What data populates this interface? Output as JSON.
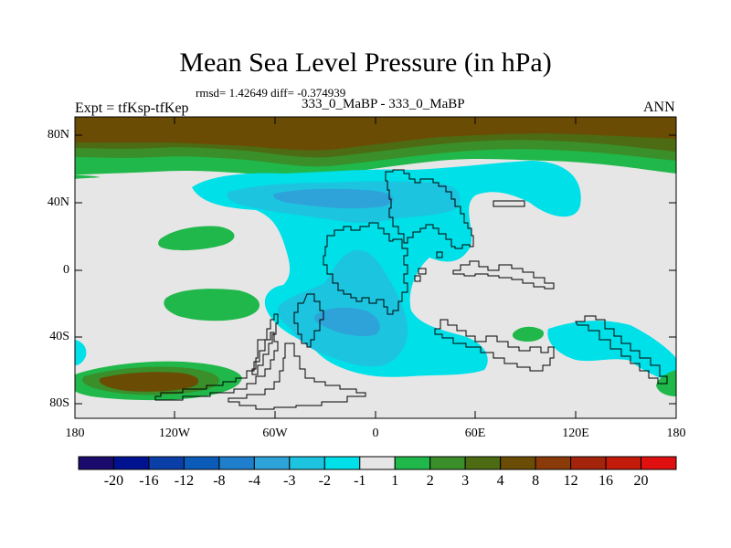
{
  "title": "Mean Sea Level Pressure (in hPa)",
  "stats": "rmsd= 1.42649 diff= -0.374939",
  "experiment": "Expt = tfKsp-tfKep",
  "cases": "333_0_MaBP - 333_0_MaBP",
  "season": "ANN",
  "y_axis": {
    "labels": [
      "80N",
      "40N",
      "0",
      "40S",
      "80S"
    ],
    "values": [
      80,
      40,
      0,
      -40,
      -80
    ]
  },
  "x_axis": {
    "labels": [
      "180",
      "120W",
      "60W",
      "0",
      "60E",
      "120E",
      "180"
    ],
    "values": [
      -180,
      -120,
      -60,
      0,
      60,
      120,
      180
    ]
  },
  "colorbar": {
    "levels": [
      "-20",
      "-16",
      "-12",
      "-8",
      "-4",
      "-3",
      "-2",
      "-1",
      "1",
      "2",
      "3",
      "4",
      "8",
      "12",
      "16",
      "20"
    ],
    "colors": [
      "#1a0a6b",
      "#00128f",
      "#0a3fa8",
      "#0a5cb8",
      "#1f7fcc",
      "#2ea3d9",
      "#1cc4e0",
      "#00e0e8",
      "#e6e6e6",
      "#20b84a",
      "#3a8f2a",
      "#4c6b12",
      "#6b4c05",
      "#8a3a08",
      "#a3240a",
      "#c41a0a",
      "#e01010"
    ]
  },
  "map_colors": {
    "background": "#e6e6e6",
    "neg1": "#00e0e8",
    "neg2": "#1cc4e0",
    "neg3": "#2ea3d9",
    "neg4": "#1f7fcc",
    "pos1": "#20b84a",
    "pos2": "#3a8f2a",
    "pos3": "#4c6b12",
    "pos4": "#6b4c05",
    "pos5": "#8a3a08"
  }
}
